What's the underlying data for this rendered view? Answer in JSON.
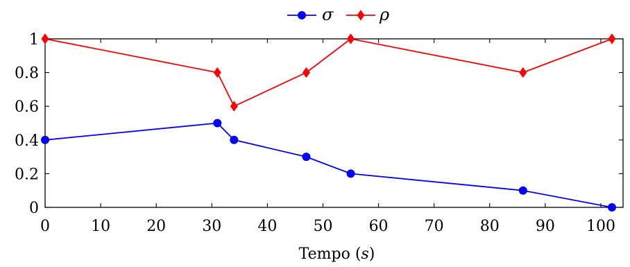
{
  "chart_data": {
    "type": "line",
    "title": "",
    "xlabel": "Tempo (",
    "xlabel_unit": "s",
    "xlabel_close": ")",
    "ylabel": "",
    "xlim": [
      0,
      104
    ],
    "ylim": [
      0,
      1
    ],
    "x_ticks": [
      0,
      10,
      20,
      30,
      40,
      50,
      60,
      70,
      80,
      90,
      100
    ],
    "x_tick_labels": [
      "0",
      "10",
      "20",
      "30",
      "40",
      "50",
      "60",
      "70",
      "80",
      "90",
      "100"
    ],
    "y_ticks": [
      0,
      0.2,
      0.4,
      0.6,
      0.8,
      1
    ],
    "y_tick_labels": [
      "0",
      "0.2",
      "0.4",
      "0.6",
      "0.8",
      "1"
    ],
    "grid": false,
    "legend_position": "top-center",
    "series": [
      {
        "name": "σ",
        "color": "#0000ff",
        "marker": "circle",
        "x": [
          0,
          31,
          34,
          47,
          55,
          86,
          102
        ],
        "y": [
          0.4,
          0.5,
          0.4,
          0.3,
          0.2,
          0.1,
          0.0
        ]
      },
      {
        "name": "ρ",
        "color": "#ff0000",
        "marker": "diamond",
        "x": [
          0,
          31,
          34,
          47,
          55,
          86,
          102
        ],
        "y": [
          1.0,
          0.8,
          0.6,
          0.8,
          1.0,
          0.8,
          1.0
        ]
      }
    ]
  }
}
